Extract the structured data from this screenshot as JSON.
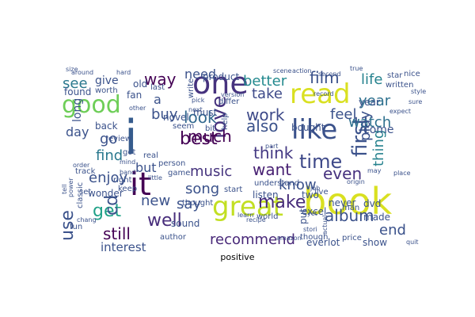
{
  "figure": {
    "caption": "positive",
    "background": "#ffffff"
  },
  "palette": {
    "dark_purple": "#440154",
    "indigo": "#46327e",
    "blue": "#365c8d",
    "steel": "#277f8e",
    "teal": "#1fa187",
    "green": "#4ac16d",
    "lime": "#a0da39",
    "yellow": "#d9e021",
    "pale_yellow": "#fde725"
  },
  "word_cloud": {
    "words": [
      {
        "text": "book",
        "weight": 1.0,
        "color": "#d9e021"
      },
      {
        "text": "great",
        "weight": 0.92,
        "color": "#c2df23"
      },
      {
        "text": "i",
        "weight": 0.9,
        "color": "#365c8d"
      },
      {
        "text": "read",
        "weight": 0.86,
        "color": "#d9e021"
      },
      {
        "text": "one",
        "weight": 0.84,
        "color": "#46327e"
      },
      {
        "text": "like",
        "weight": 0.76,
        "color": "#3b528b"
      },
      {
        "text": "it",
        "weight": 0.74,
        "color": "#440154"
      },
      {
        "text": "good",
        "weight": 0.7,
        "color": "#6ece58"
      },
      {
        "text": "love",
        "weight": 0.66,
        "color": "#46327e"
      },
      {
        "text": "time",
        "weight": 0.6,
        "color": "#3e4989"
      },
      {
        "text": "album",
        "weight": 0.56,
        "color": "#3b528b"
      },
      {
        "text": "first",
        "weight": 0.55,
        "color": "#3b528b"
      },
      {
        "text": "recommend",
        "weight": 0.54,
        "color": "#482878"
      },
      {
        "text": "well",
        "weight": 0.52,
        "color": "#472d7b"
      },
      {
        "text": "make",
        "weight": 0.5,
        "color": "#472c7a"
      },
      {
        "text": "get",
        "weight": 0.48,
        "color": "#1fa187"
      },
      {
        "text": "use",
        "weight": 0.48,
        "color": "#3b528b"
      },
      {
        "text": "much",
        "weight": 0.47,
        "color": "#440154"
      },
      {
        "text": "work",
        "weight": 0.46,
        "color": "#3e4a89"
      },
      {
        "text": "film",
        "weight": 0.45,
        "color": "#3b528b"
      },
      {
        "text": "look",
        "weight": 0.44,
        "color": "#31688e"
      },
      {
        "text": "best",
        "weight": 0.44,
        "color": "#440154"
      },
      {
        "text": "still",
        "weight": 0.43,
        "color": "#440154"
      },
      {
        "text": "way",
        "weight": 0.42,
        "color": "#440154"
      },
      {
        "text": "also",
        "weight": 0.42,
        "color": "#3b528b"
      },
      {
        "text": "think",
        "weight": 0.42,
        "color": "#443983"
      },
      {
        "text": "want",
        "weight": 0.42,
        "color": "#482173"
      },
      {
        "text": "even",
        "weight": 0.42,
        "color": "#46317e"
      },
      {
        "text": "life",
        "weight": 0.4,
        "color": "#26828e"
      },
      {
        "text": "watch",
        "weight": 0.4,
        "color": "#2d708e"
      },
      {
        "text": "play",
        "weight": 0.4,
        "color": "#3b528b"
      },
      {
        "text": "cd",
        "weight": 0.4,
        "color": "#3b528b"
      },
      {
        "text": "better",
        "weight": 0.38,
        "color": "#23898e"
      },
      {
        "text": "music",
        "weight": 0.38,
        "color": "#45337d"
      },
      {
        "text": "enjoy",
        "weight": 0.38,
        "color": "#3b528b"
      },
      {
        "text": "find",
        "weight": 0.38,
        "color": "#2a788e"
      },
      {
        "text": "see",
        "weight": 0.38,
        "color": "#2a788e"
      },
      {
        "text": "year",
        "weight": 0.37,
        "color": "#2d708e"
      },
      {
        "text": "thing",
        "weight": 0.37,
        "color": "#26828e"
      },
      {
        "text": "know",
        "weight": 0.36,
        "color": "#3b528b"
      },
      {
        "text": "take",
        "weight": 0.36,
        "color": "#3e4a89"
      },
      {
        "text": "say",
        "weight": 0.35,
        "color": "#3b528b"
      },
      {
        "text": "new",
        "weight": 0.34,
        "color": "#3b528b"
      },
      {
        "text": "song",
        "weight": 0.34,
        "color": "#3b528b"
      },
      {
        "text": "go",
        "weight": 0.34,
        "color": "#3b528b"
      },
      {
        "text": "buy",
        "weight": 0.34,
        "color": "#3b528b"
      },
      {
        "text": "feel",
        "weight": 0.33,
        "color": "#3b528b"
      },
      {
        "text": "end",
        "weight": 0.32,
        "color": "#3b528b"
      },
      {
        "text": "interest",
        "weight": 0.3,
        "color": "#3b528b"
      },
      {
        "text": "need",
        "weight": 0.3,
        "color": "#3b528b"
      },
      {
        "text": "but",
        "weight": 0.3,
        "color": "#3b528b"
      },
      {
        "text": "day",
        "weight": 0.28,
        "color": "#3b528b"
      },
      {
        "text": "give",
        "weight": 0.28,
        "color": "#3b528b"
      },
      {
        "text": "come",
        "weight": 0.28,
        "color": "#3b528b"
      },
      {
        "text": "a",
        "weight": 0.28,
        "color": "#3b528b"
      },
      {
        "text": "ever",
        "weight": 0.26,
        "color": "#3b528b"
      },
      {
        "text": "put",
        "weight": 0.26,
        "color": "#3b528b"
      },
      {
        "text": "two",
        "weight": 0.26,
        "color": "#3b528b"
      },
      {
        "text": "dvd",
        "weight": 0.26,
        "color": "#3b528b"
      },
      {
        "text": "made",
        "weight": 0.24,
        "color": "#3b528b"
      },
      {
        "text": "show",
        "weight": 0.24,
        "color": "#3b528b"
      },
      {
        "text": "sound",
        "weight": 0.22,
        "color": "#3b528b"
      },
      {
        "text": "long",
        "weight": 0.22,
        "color": "#3b528b"
      },
      {
        "text": "found",
        "weight": 0.22,
        "color": "#3b528b"
      },
      {
        "text": "product",
        "weight": 0.22,
        "color": "#3b528b"
      },
      {
        "text": "fan",
        "weight": 0.2,
        "color": "#3b528b"
      },
      {
        "text": "back",
        "weight": 0.2,
        "color": "#3b528b"
      },
      {
        "text": "novel",
        "weight": 0.2,
        "color": "#3b528b"
      },
      {
        "text": "old",
        "weight": 0.2,
        "color": "#3b528b"
      },
      {
        "text": "excel",
        "weight": 0.2,
        "color": "#3b528b"
      },
      {
        "text": "bought",
        "weight": 0.2,
        "color": "#3b528b"
      },
      {
        "text": "never",
        "weight": 0.2,
        "color": "#3b528b"
      },
      {
        "text": "year",
        "weight": 0.18,
        "color": "#3b528b"
      },
      {
        "text": "listen",
        "weight": 0.18,
        "color": "#3b528b"
      },
      {
        "text": "lot",
        "weight": 0.18,
        "color": "#3b528b"
      },
      {
        "text": "must",
        "weight": 0.18,
        "color": "#3b528b"
      },
      {
        "text": "author",
        "weight": 0.16,
        "color": "#3b528b"
      },
      {
        "text": "wonder",
        "weight": 0.16,
        "color": "#3b528b"
      },
      {
        "text": "classic",
        "weight": 0.14,
        "color": "#3b528b"
      },
      {
        "text": "review",
        "weight": 0.14,
        "color": "#3b528b"
      },
      {
        "text": "live",
        "weight": 0.16,
        "color": "#3b528b"
      },
      {
        "text": "understand",
        "weight": 0.14,
        "color": "#3b528b"
      },
      {
        "text": "thought",
        "weight": 0.14,
        "color": "#3b528b"
      },
      {
        "text": "person",
        "weight": 0.14,
        "color": "#3b528b"
      },
      {
        "text": "written",
        "weight": 0.14,
        "color": "#3b528b"
      },
      {
        "text": "star",
        "weight": 0.14,
        "color": "#3b528b"
      },
      {
        "text": "nice",
        "weight": 0.14,
        "color": "#3b528b"
      },
      {
        "text": "world",
        "weight": 0.12,
        "color": "#3b528b"
      },
      {
        "text": "price",
        "weight": 0.14,
        "color": "#3b528b"
      },
      {
        "text": "man",
        "weight": 0.14,
        "color": "#3b528b"
      },
      {
        "text": "though",
        "weight": 0.12,
        "color": "#3b528b"
      },
      {
        "text": "set",
        "weight": 0.12,
        "color": "#3b528b"
      },
      {
        "text": "keep",
        "weight": 0.12,
        "color": "#3b528b"
      },
      {
        "text": "real",
        "weight": 0.12,
        "color": "#3b528b"
      },
      {
        "text": "got",
        "weight": 0.12,
        "color": "#3b528b"
      },
      {
        "text": "fun",
        "weight": 0.12,
        "color": "#3b528b"
      },
      {
        "text": "start",
        "weight": 0.12,
        "color": "#3b528b"
      },
      {
        "text": "differ",
        "weight": 0.12,
        "color": "#3b528b"
      },
      {
        "text": "worth",
        "weight": 0.12,
        "color": "#3b528b"
      },
      {
        "text": "last",
        "weight": 0.12,
        "color": "#3b528b"
      },
      {
        "text": "bit",
        "weight": 0.12,
        "color": "#3b528b"
      },
      {
        "text": "seem",
        "weight": 0.12,
        "color": "#3b528b"
      },
      {
        "text": "write",
        "weight": 0.1,
        "color": "#3b528b"
      },
      {
        "text": "version",
        "weight": 0.1,
        "color": "#3b528b"
      },
      {
        "text": "part",
        "weight": 0.1,
        "color": "#3b528b"
      },
      {
        "text": "help",
        "weight": 0.1,
        "color": "#3b528b"
      },
      {
        "text": "little",
        "weight": 0.1,
        "color": "#3b528b"
      },
      {
        "text": "game",
        "weight": 0.1,
        "color": "#3b528b"
      },
      {
        "text": "band",
        "weight": 0.1,
        "color": "#3b528b"
      },
      {
        "text": "track",
        "weight": 0.1,
        "color": "#3b528b"
      },
      {
        "text": "order",
        "weight": 0.1,
        "color": "#3b528b"
      },
      {
        "text": "around",
        "weight": 0.1,
        "color": "#3b528b"
      },
      {
        "text": "hard",
        "weight": 0.1,
        "color": "#3b528b"
      },
      {
        "text": "action",
        "weight": 0.1,
        "color": "#3b528b"
      },
      {
        "text": "scene",
        "weight": 0.1,
        "color": "#3b528b"
      },
      {
        "text": "other",
        "weight": 0.1,
        "color": "#3b528b"
      },
      {
        "text": "chang",
        "weight": 0.1,
        "color": "#3b528b"
      },
      {
        "text": "tell",
        "weight": 0.1,
        "color": "#3b528b"
      },
      {
        "text": "may",
        "weight": 0.1,
        "color": "#3b528b"
      },
      {
        "text": "job",
        "weight": 0.1,
        "color": "#3b528b"
      },
      {
        "text": "yet",
        "weight": 0.1,
        "color": "#3b528b"
      },
      {
        "text": "place",
        "weight": 0.1,
        "color": "#3b528b"
      },
      {
        "text": "style",
        "weight": 0.1,
        "color": "#3b528b"
      },
      {
        "text": "sure",
        "weight": 0.1,
        "color": "#3b528b"
      },
      {
        "text": "size",
        "weight": 0.1,
        "color": "#3b528b"
      },
      {
        "text": "quit",
        "weight": 0.1,
        "color": "#3b528b"
      },
      {
        "text": "expect",
        "weight": 0.1,
        "color": "#3b528b"
      },
      {
        "text": "actual",
        "weight": 0.1,
        "color": "#3b528b"
      },
      {
        "text": "pick",
        "weight": 0.1,
        "color": "#3b528b"
      },
      {
        "text": "origin",
        "weight": 0.1,
        "color": "#3b528b"
      },
      {
        "text": "learn",
        "weight": 0.1,
        "color": "#3b528b"
      },
      {
        "text": "next",
        "weight": 0.1,
        "color": "#3b528b"
      },
      {
        "text": "power",
        "weight": 0.1,
        "color": "#3b528b"
      },
      {
        "text": "mind",
        "weight": 0.1,
        "color": "#3b528b"
      },
      {
        "text": "right",
        "weight": 0.1,
        "color": "#3b528b"
      },
      {
        "text": "true",
        "weight": 0.1,
        "color": "#3b528b"
      },
      {
        "text": "amazon",
        "weight": 0.1,
        "color": "#3b528b"
      },
      {
        "text": "record",
        "weight": 0.1,
        "color": "#3b528b"
      },
      {
        "text": "recipe",
        "weight": 0.1,
        "color": "#3b528b"
      },
      {
        "text": "second",
        "weight": 0.1,
        "color": "#3b528b"
      },
      {
        "text": "stori",
        "weight": 0.1,
        "color": "#3b528b"
      }
    ]
  }
}
